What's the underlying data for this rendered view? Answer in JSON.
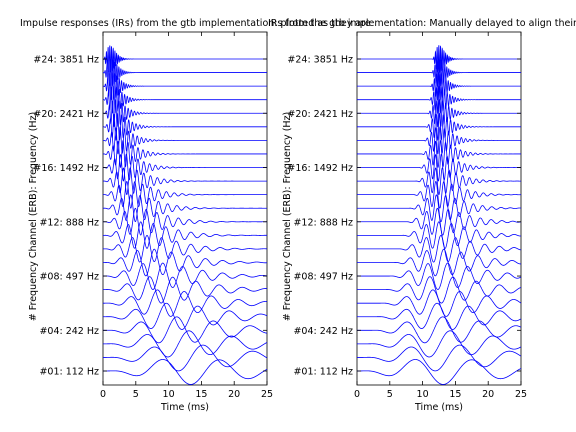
{
  "chart_data": [
    {
      "type": "line",
      "title": "Impulse responses (IRs) from the gtb implementation: plotted as they are",
      "xlabel": "Time (ms)",
      "ylabel": "# Frequency Channel (ERB): Frequency (Hz)",
      "xlim": [
        0,
        25
      ],
      "xticks": [
        0,
        5,
        10,
        15,
        20,
        25
      ],
      "ytick_labels": [
        "#01: 112 Hz",
        "#04: 242 Hz",
        "#08: 497 Hz",
        "#12: 888 Hz",
        "#16: 1492 Hz",
        "#20: 2421 Hz",
        "#24: 3851 Hz"
      ],
      "ytick_channels": [
        1,
        4,
        8,
        12,
        16,
        20,
        24
      ],
      "channels": 24,
      "center_freqs_hz_first_last": [
        112,
        3851
      ],
      "delayed": false,
      "line_color": "#0000ff"
    },
    {
      "type": "line",
      "title": "IRs from the gtb implementation: Manually delayed to align their maxima",
      "xlabel": "Time (ms)",
      "ylabel": "# Frequency Channel (ERB): Frequency (Hz)",
      "xlim": [
        0,
        25
      ],
      "xticks": [
        0,
        5,
        10,
        15,
        20,
        25
      ],
      "ytick_labels": [
        "#01: 112 Hz",
        "#04: 242 Hz",
        "#08: 497 Hz",
        "#12: 888 Hz",
        "#16: 1492 Hz",
        "#20: 2421 Hz",
        "#24: 3851 Hz"
      ],
      "ytick_channels": [
        1,
        4,
        8,
        12,
        16,
        20,
        24
      ],
      "channels": 24,
      "center_freqs_hz_first_last": [
        112,
        3851
      ],
      "delayed": true,
      "aligned_peak_ms": 12.5,
      "line_color": "#0000ff"
    }
  ]
}
